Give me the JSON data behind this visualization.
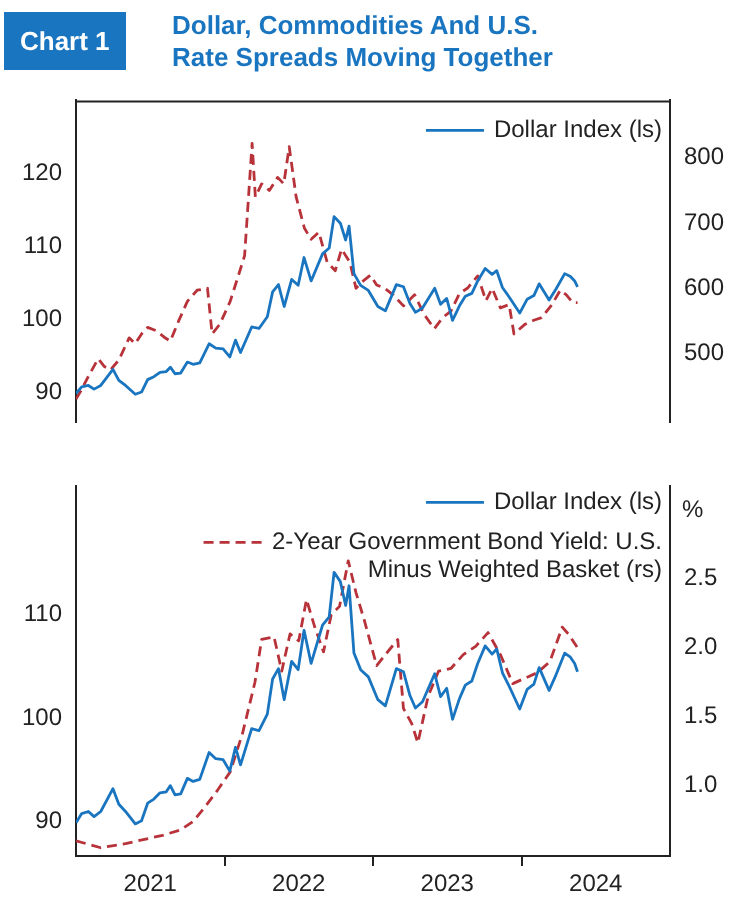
{
  "chart_data": [
    {
      "type": "line",
      "title": "Chart 1",
      "subtitle": "Dollar, Commodities And U.S. Rate Spreads Moving Together",
      "xlim": [
        "2021-01-01",
        "2025-01-01"
      ],
      "ylim": [
        86,
        130
      ],
      "yticks": [
        90,
        100,
        110,
        120
      ],
      "y2lim": [
        395,
        888
      ],
      "y2ticks": [
        500,
        600,
        700,
        800
      ],
      "tick_labels": "y",
      "legend": "top right",
      "grid": false,
      "series": [
        {
          "name": "Dollar Index (ls)",
          "color": "#1a75c0",
          "line_style": "solid",
          "x": [
            "2021-01-01",
            "2021-01-15",
            "2021-02-01",
            "2021-02-15",
            "2021-03-01",
            "2021-03-31",
            "2021-04-15",
            "2021-05-01",
            "2021-05-25",
            "2021-06-10",
            "2021-06-25",
            "2021-07-10",
            "2021-07-25",
            "2021-08-10",
            "2021-08-20",
            "2021-09-01",
            "2021-09-15",
            "2021-10-01",
            "2021-10-15",
            "2021-11-01",
            "2021-11-24",
            "2021-12-10",
            "2021-12-28",
            "2022-01-14",
            "2022-01-28",
            "2022-02-10",
            "2022-03-07",
            "2022-03-25",
            "2022-04-15",
            "2022-04-28",
            "2022-05-12",
            "2022-05-26",
            "2022-06-14",
            "2022-06-30",
            "2022-07-14",
            "2022-08-01",
            "2022-08-29",
            "2022-09-15",
            "2022-09-27",
            "2022-10-12",
            "2022-10-25",
            "2022-11-03",
            "2022-11-15",
            "2022-12-01",
            "2022-12-20",
            "2023-01-13",
            "2023-02-01",
            "2023-02-28",
            "2023-03-15",
            "2023-03-31",
            "2023-04-14",
            "2023-05-01",
            "2023-05-31",
            "2023-06-15",
            "2023-06-30",
            "2023-07-14",
            "2023-07-31",
            "2023-08-15",
            "2023-08-31",
            "2023-09-15",
            "2023-10-03",
            "2023-10-20",
            "2023-11-01",
            "2023-11-15",
            "2023-12-01",
            "2023-12-27",
            "2024-01-15",
            "2024-02-01",
            "2024-02-14",
            "2024-03-08",
            "2024-03-25",
            "2024-04-16",
            "2024-04-30",
            "2024-05-10",
            "2024-05-17"
          ],
          "values": [
            89.9,
            90.8,
            91.0,
            90.5,
            91.0,
            93.2,
            91.7,
            91.0,
            89.8,
            90.1,
            91.8,
            92.2,
            92.8,
            92.9,
            93.5,
            92.6,
            92.7,
            94.2,
            93.9,
            94.1,
            96.7,
            96.1,
            96.0,
            94.9,
            97.2,
            95.5,
            99.0,
            98.8,
            100.4,
            103.8,
            104.8,
            101.8,
            105.5,
            104.7,
            108.5,
            105.3,
            109.0,
            109.8,
            114.1,
            113.2,
            110.9,
            112.8,
            106.3,
            104.7,
            104.0,
            101.8,
            101.2,
            104.8,
            104.5,
            102.2,
            101.0,
            101.6,
            104.3,
            102.1,
            102.9,
            99.9,
            101.9,
            103.2,
            103.6,
            105.3,
            107.0,
            106.2,
            106.7,
            104.4,
            103.1,
            100.9,
            102.8,
            103.3,
            104.9,
            102.7,
            104.2,
            106.3,
            105.9,
            105.3,
            104.5
          ]
        },
        {
          "color": "#b8323a",
          "line_style": "dashed",
          "axis": "y2",
          "x": [
            "2021-01-01",
            "2021-01-15",
            "2021-02-01",
            "2021-02-25",
            "2021-03-10",
            "2021-03-25",
            "2021-04-15",
            "2021-05-10",
            "2021-05-25",
            "2021-06-10",
            "2021-06-25",
            "2021-07-15",
            "2021-08-05",
            "2021-08-20",
            "2021-09-10",
            "2021-10-01",
            "2021-10-25",
            "2021-11-20",
            "2021-12-01",
            "2021-12-20",
            "2022-01-15",
            "2022-02-05",
            "2022-02-20",
            "2022-03-08",
            "2022-03-16",
            "2022-04-01",
            "2022-04-20",
            "2022-05-10",
            "2022-05-25",
            "2022-06-08",
            "2022-06-25",
            "2022-07-15",
            "2022-08-01",
            "2022-08-20",
            "2022-09-10",
            "2022-09-30",
            "2022-10-15",
            "2022-11-05",
            "2022-11-20",
            "2022-12-05",
            "2022-12-25",
            "2023-01-10",
            "2023-01-30",
            "2023-02-20",
            "2023-03-15",
            "2023-04-12",
            "2023-05-05",
            "2023-05-30",
            "2023-06-20",
            "2023-07-10",
            "2023-07-31",
            "2023-08-20",
            "2023-09-15",
            "2023-10-05",
            "2023-10-20",
            "2023-11-10",
            "2023-12-01",
            "2023-12-13",
            "2024-01-10",
            "2024-01-31",
            "2024-02-20",
            "2024-03-15",
            "2024-04-05",
            "2024-04-20",
            "2024-05-05",
            "2024-05-17"
          ],
          "values": [
            430,
            445,
            465,
            492,
            480,
            475,
            490,
            524,
            515,
            530,
            540,
            535,
            525,
            519,
            550,
            580,
            597,
            600,
            530,
            545,
            580,
            620,
            650,
            822,
            740,
            760,
            750,
            770,
            760,
            817,
            740,
            692,
            675,
            686,
            640,
            627,
            660,
            640,
            600,
            610,
            620,
            605,
            600,
            590,
            573,
            590,
            560,
            538,
            555,
            565,
            592,
            600,
            619,
            581,
            600,
            570,
            575,
            530,
            545,
            551,
            555,
            575,
            597,
            590,
            578,
            578
          ]
        }
      ]
    },
    {
      "type": "line",
      "xlim": [
        "2021-01-01",
        "2025-01-01"
      ],
      "xticks": [
        {
          "value": "2021-07-01",
          "label": "2021"
        },
        {
          "value": "2022-01-01",
          "label": null
        },
        {
          "value": "2022-07-01",
          "label": "2022"
        },
        {
          "value": "2023-01-01",
          "label": null
        },
        {
          "value": "2023-07-01",
          "label": "2023"
        },
        {
          "value": "2024-01-01",
          "label": null
        },
        {
          "value": "2024-07-01",
          "label": "2024"
        }
      ],
      "ylim": [
        86.7,
        122.4
      ],
      "yticks": [
        90,
        100,
        110
      ],
      "y2lim": [
        0.49,
        3.17
      ],
      "y2ticks": [
        {
          "value": 1,
          "label": "1.0"
        },
        {
          "value": 1.5,
          "label": "1.5"
        },
        {
          "value": 2,
          "label": "2.0"
        },
        {
          "value": 2.5,
          "label": "2.5"
        }
      ],
      "y2label": "%",
      "legend": "top right",
      "grid": false,
      "series": [
        {
          "name": "Dollar Index (ls)",
          "color": "#1a75c0",
          "line_style": "solid",
          "x": [
            "2021-01-01",
            "2021-01-15",
            "2021-02-01",
            "2021-02-15",
            "2021-03-01",
            "2021-03-31",
            "2021-04-15",
            "2021-05-01",
            "2021-05-25",
            "2021-06-10",
            "2021-06-25",
            "2021-07-10",
            "2021-07-25",
            "2021-08-10",
            "2021-08-20",
            "2021-09-01",
            "2021-09-15",
            "2021-10-01",
            "2021-10-15",
            "2021-11-01",
            "2021-11-24",
            "2021-12-10",
            "2021-12-28",
            "2022-01-14",
            "2022-01-28",
            "2022-02-10",
            "2022-03-07",
            "2022-03-25",
            "2022-04-15",
            "2022-04-28",
            "2022-05-12",
            "2022-05-26",
            "2022-06-14",
            "2022-06-30",
            "2022-07-14",
            "2022-08-01",
            "2022-08-29",
            "2022-09-15",
            "2022-09-27",
            "2022-10-12",
            "2022-10-25",
            "2022-11-03",
            "2022-11-15",
            "2022-12-01",
            "2022-12-20",
            "2023-01-13",
            "2023-02-01",
            "2023-02-28",
            "2023-03-15",
            "2023-03-31",
            "2023-04-14",
            "2023-05-01",
            "2023-05-31",
            "2023-06-15",
            "2023-06-30",
            "2023-07-14",
            "2023-07-31",
            "2023-08-15",
            "2023-08-31",
            "2023-09-15",
            "2023-10-03",
            "2023-10-20",
            "2023-11-01",
            "2023-11-15",
            "2023-12-01",
            "2023-12-27",
            "2024-01-15",
            "2024-02-01",
            "2024-02-14",
            "2024-03-08",
            "2024-03-25",
            "2024-04-16",
            "2024-04-30",
            "2024-05-10",
            "2024-05-17"
          ],
          "values": [
            89.9,
            90.8,
            91.0,
            90.5,
            91.0,
            93.2,
            91.7,
            91.0,
            89.8,
            90.1,
            91.8,
            92.2,
            92.8,
            92.9,
            93.5,
            92.6,
            92.7,
            94.2,
            93.9,
            94.1,
            96.7,
            96.1,
            96.0,
            94.9,
            97.2,
            95.5,
            99.0,
            98.8,
            100.4,
            103.8,
            104.8,
            101.8,
            105.5,
            104.7,
            108.5,
            105.3,
            109.0,
            109.8,
            114.1,
            113.2,
            110.9,
            112.8,
            106.3,
            104.7,
            104.0,
            101.8,
            101.2,
            104.8,
            104.5,
            102.2,
            101.0,
            101.6,
            104.3,
            102.1,
            102.9,
            99.9,
            101.9,
            103.2,
            103.6,
            105.3,
            107.0,
            106.2,
            106.7,
            104.4,
            103.1,
            100.9,
            102.8,
            103.3,
            104.9,
            102.7,
            104.2,
            106.3,
            105.9,
            105.3,
            104.5
          ]
        },
        {
          "name": "2-Year Government Bond Yield: U.S. Minus Weighted Basket (rs)",
          "color": "#b8323a",
          "line_style": "dashed",
          "axis": "y2",
          "x": [
            "2021-01-01",
            "2021-03-01",
            "2021-05-01",
            "2021-08-01",
            "2021-09-15",
            "2021-10-15",
            "2021-11-15",
            "2021-12-15",
            "2022-01-15",
            "2022-02-15",
            "2022-03-15",
            "2022-04-01",
            "2022-05-01",
            "2022-05-20",
            "2022-06-10",
            "2022-07-01",
            "2022-07-20",
            "2022-08-10",
            "2022-09-01",
            "2022-09-20",
            "2022-10-10",
            "2022-11-01",
            "2022-11-20",
            "2022-12-10",
            "2023-01-10",
            "2023-02-01",
            "2023-03-01",
            "2023-03-15",
            "2023-04-05",
            "2023-04-20",
            "2023-05-15",
            "2023-06-10",
            "2023-07-10",
            "2023-08-10",
            "2023-09-10",
            "2023-10-10",
            "2023-11-10",
            "2023-12-10",
            "2024-01-10",
            "2024-02-10",
            "2024-03-10",
            "2024-04-10",
            "2024-04-25",
            "2024-05-17"
          ],
          "values": [
            0.6,
            0.55,
            0.58,
            0.64,
            0.68,
            0.74,
            0.85,
            0.97,
            1.1,
            1.38,
            1.75,
            2.06,
            2.08,
            1.83,
            2.1,
            2.05,
            2.35,
            2.15,
            1.97,
            2.24,
            2.3,
            2.63,
            2.4,
            2.2,
            1.87,
            1.95,
            2.06,
            1.56,
            1.45,
            1.31,
            1.65,
            1.83,
            1.85,
            1.95,
            2.01,
            2.11,
            1.95,
            1.74,
            1.78,
            1.82,
            1.9,
            2.15,
            2.1,
            2.0
          ]
        }
      ]
    }
  ]
}
